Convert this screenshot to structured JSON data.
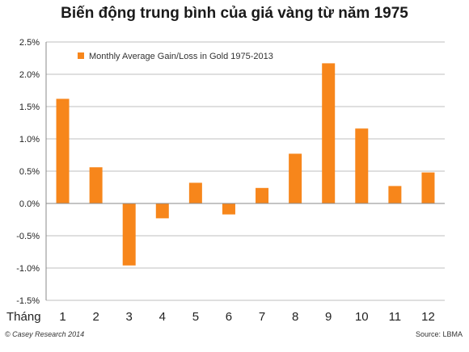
{
  "title": "Biến động trung bình của giá vàng từ năm 1975",
  "footer": {
    "left": "© Casey Research 2014",
    "right": "Source: LBMA"
  },
  "colors": {
    "bar": "#F7861B",
    "grid": "#BFBFBF",
    "axis": "#888888",
    "text": "#222222"
  },
  "chart_data": {
    "type": "bar",
    "xlabel": "Tháng",
    "ylabel": "",
    "categories": [
      "1",
      "2",
      "3",
      "4",
      "5",
      "6",
      "7",
      "8",
      "9",
      "10",
      "11",
      "12"
    ],
    "series": [
      {
        "name": "Monthly Average Gain/Loss in Gold 1975-2013",
        "values": [
          1.62,
          0.56,
          -0.96,
          -0.23,
          0.32,
          -0.17,
          0.24,
          0.77,
          2.17,
          1.16,
          0.27,
          0.48
        ]
      }
    ],
    "ylim": [
      -1.5,
      2.5
    ],
    "yticks": [
      "2.5%",
      "2.0%",
      "1.5%",
      "1.0%",
      "0.5%",
      "0.0%",
      "-0.5%",
      "-1.0%",
      "-1.5%"
    ],
    "ytick_values": [
      2.5,
      2.0,
      1.5,
      1.0,
      0.5,
      0.0,
      -0.5,
      -1.0,
      -1.5
    ],
    "grid": true,
    "legend_position": "top-left"
  }
}
